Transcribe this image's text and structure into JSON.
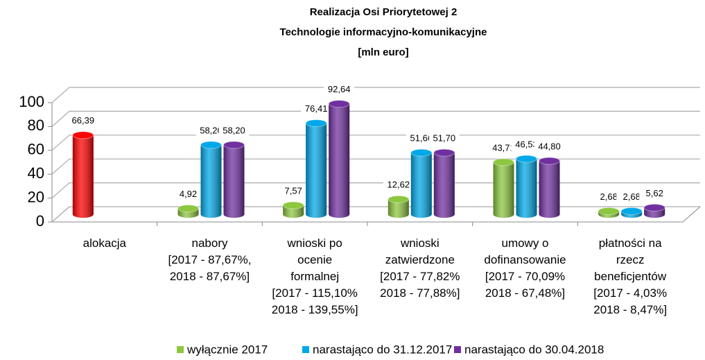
{
  "chart_data": {
    "type": "bar3d",
    "title": [
      "Realizacja Osi Priorytetowej 2",
      "Technologie informacyjno-komunikacyjne",
      "[mln euro]"
    ],
    "categories": [
      "alokacja",
      "nabory\n[2017 - 87,67%,\n2018 - 87,67%]",
      "wnioski po\nocenie\nformalnej\n[2017 - 115,10%\n2018 - 139,55%]",
      "wnioski\nzatwierdzone\n[2017 - 77,82%\n2018 - 77,88%]",
      "umowy o\ndofinansowanie\n[2017 - 70,09%\n2018 - 67,48%]",
      "płatności na\nrzecz\nbeneficjentów\n[2017 - 4,03%\n2018 - 8,47%]"
    ],
    "series": [
      {
        "name": "wyłącznie 2017",
        "color": "#8dc63f",
        "point_colors": [
          "#ff0000",
          "#8dc63f",
          "#8dc63f",
          "#8dc63f",
          "#8dc63f",
          "#8dc63f"
        ],
        "values": [
          66.39,
          4.92,
          7.57,
          12.62,
          43.71,
          2.68
        ],
        "value_labels": [
          "66,39",
          "4,92",
          "7,57",
          "12,62",
          "43,71",
          "2,68"
        ]
      },
      {
        "name": "narastająco do 31.12.2017",
        "color": "#00a8e8",
        "values": [
          null,
          58.2,
          76.41,
          51.66,
          46.53,
          2.68
        ],
        "value_labels": [
          null,
          "58,20",
          "76,41",
          "51,66",
          "46,53",
          "2,68"
        ]
      },
      {
        "name": "narastająco do 30.04.2018",
        "color": "#7030a0",
        "values": [
          null,
          58.2,
          92.64,
          51.7,
          44.8,
          5.62
        ],
        "value_labels": [
          null,
          "58,20",
          "92,64",
          "51,70",
          "44,80",
          "5,62"
        ]
      }
    ],
    "ylim": [
      0,
      100
    ],
    "yticks": [
      0,
      20,
      40,
      60,
      80,
      100
    ],
    "grid": true,
    "legend": "bottom"
  }
}
